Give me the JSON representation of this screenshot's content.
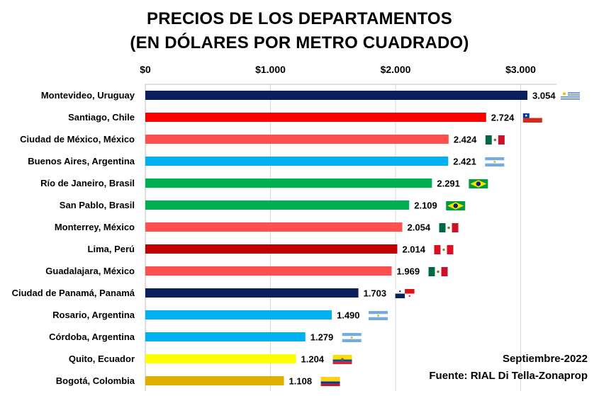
{
  "chart_data": {
    "type": "bar",
    "orientation": "horizontal",
    "title": "PRECIOS DE LOS DEPARTAMENTOS",
    "subtitle": "(EN DÓLARES POR METRO CUADRADO)",
    "xlim": [
      0,
      3400
    ],
    "x_ticks": [
      {
        "value": 0,
        "label": "$0"
      },
      {
        "value": 1000,
        "label": "$1.000"
      },
      {
        "value": 2000,
        "label": "$2.000"
      },
      {
        "value": 3000,
        "label": "$3.000"
      }
    ],
    "grid": true,
    "bars": [
      {
        "category": "Montevideo, Uruguay",
        "value": 3054,
        "label": "3.054",
        "color": "#0b1f5c",
        "flag": "uruguay-flag"
      },
      {
        "category": "Santiago, Chile",
        "value": 2724,
        "label": "2.724",
        "color": "#ff0000",
        "flag": "chile-flag"
      },
      {
        "category": "Ciudad de México, México",
        "value": 2424,
        "label": "2.424",
        "color": "#ff5050",
        "flag": "mexico-flag"
      },
      {
        "category": "Buenos Aires, Argentina",
        "value": 2421,
        "label": "2.421",
        "color": "#00b0f0",
        "flag": "argentina-flag"
      },
      {
        "category": "Río de Janeiro, Brasil",
        "value": 2291,
        "label": "2.291",
        "color": "#00b050",
        "flag": "brazil-flag"
      },
      {
        "category": "San Pablo, Brasil",
        "value": 2109,
        "label": "2.109",
        "color": "#00b050",
        "flag": "brazil-flag"
      },
      {
        "category": "Monterrey, México",
        "value": 2054,
        "label": "2.054",
        "color": "#ff5050",
        "flag": "mexico-flag"
      },
      {
        "category": "Lima, Perú",
        "value": 2014,
        "label": "2.014",
        "color": "#c00000",
        "flag": "peru-flag"
      },
      {
        "category": "Guadalajara, México",
        "value": 1969,
        "label": "1.969",
        "color": "#ff5050",
        "flag": "mexico-flag"
      },
      {
        "category": "Ciudad de Panamá, Panamá",
        "value": 1703,
        "label": "1.703",
        "color": "#0b1f5c",
        "flag": "panama-flag"
      },
      {
        "category": "Rosario, Argentina",
        "value": 1490,
        "label": "1.490",
        "color": "#00b0f0",
        "flag": "argentina-flag"
      },
      {
        "category": "Córdoba, Argentina",
        "value": 1279,
        "label": "1.279",
        "color": "#00b0f0",
        "flag": "argentina-flag"
      },
      {
        "category": "Quito, Ecuador",
        "value": 1204,
        "label": "1.204",
        "color": "#ffff00",
        "flag": "ecuador-flag"
      },
      {
        "category": "Bogotá, Colombia",
        "value": 1108,
        "label": "1.108",
        "color": "#e0b000",
        "flag": "colombia-flag"
      }
    ]
  },
  "footer": {
    "date": "Septiembre-2022",
    "source": "Fuente: RIAL Di Tella-Zonaprop"
  }
}
